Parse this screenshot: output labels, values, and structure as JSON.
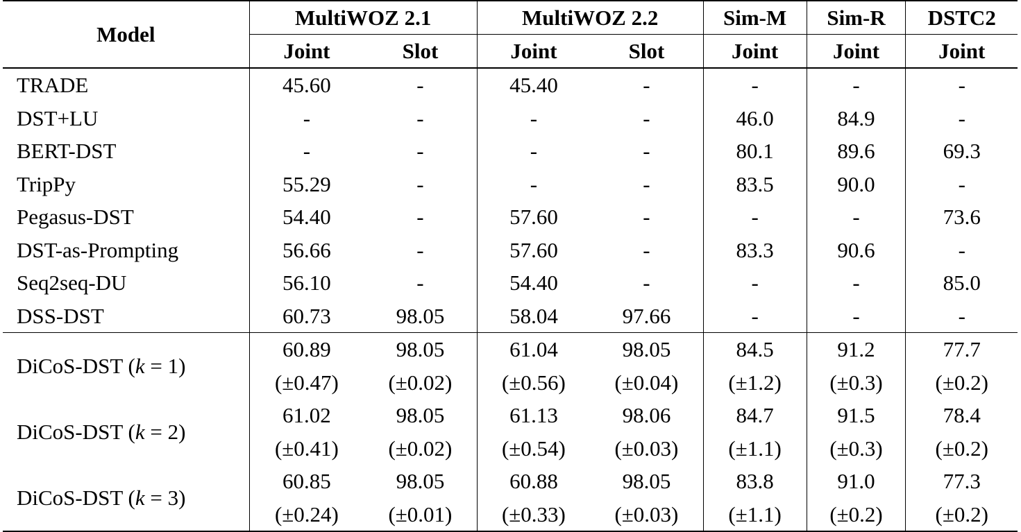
{
  "header": {
    "model": "Model",
    "groups": [
      {
        "name": "MultiWOZ 2.1",
        "cols": [
          "Joint",
          "Slot"
        ]
      },
      {
        "name": "MultiWOZ 2.2",
        "cols": [
          "Joint",
          "Slot"
        ]
      },
      {
        "name": "Sim-M",
        "cols": [
          "Joint"
        ]
      },
      {
        "name": "Sim-R",
        "cols": [
          "Joint"
        ]
      },
      {
        "name": "DSTC2",
        "cols": [
          "Joint"
        ]
      }
    ]
  },
  "baselines": [
    {
      "model": "TRADE",
      "values": [
        "45.60",
        "-",
        "45.40",
        "-",
        "-",
        "-",
        "-"
      ]
    },
    {
      "model": "DST+LU",
      "values": [
        "-",
        "-",
        "-",
        "-",
        "46.0",
        "84.9",
        "-"
      ]
    },
    {
      "model": "BERT-DST",
      "values": [
        "-",
        "-",
        "-",
        "-",
        "80.1",
        "89.6",
        "69.3"
      ]
    },
    {
      "model": "TripPy",
      "values": [
        "55.29",
        "-",
        "-",
        "-",
        "83.5",
        "90.0",
        "-"
      ]
    },
    {
      "model": "Pegasus-DST",
      "values": [
        "54.40",
        "-",
        "57.60",
        "-",
        "-",
        "-",
        "73.6"
      ]
    },
    {
      "model": "DST-as-Prompting",
      "values": [
        "56.66",
        "-",
        "57.60",
        "-",
        "83.3",
        "90.6",
        "-"
      ]
    },
    {
      "model": "Seq2seq-DU",
      "values": [
        "56.10",
        "-",
        "54.40",
        "-",
        "-",
        "-",
        "85.0"
      ],
      "bold": [
        6
      ]
    },
    {
      "model": "DSS-DST",
      "values": [
        "60.73",
        "98.05",
        "58.04",
        "97.66",
        "-",
        "-",
        "-"
      ]
    }
  ],
  "dicos": [
    {
      "model_prefix": "DiCoS-DST (",
      "k_var": "k",
      "k_eq": " = 1)",
      "values": [
        "60.89",
        "98.05",
        "61.04",
        "98.05",
        "84.5",
        "91.2",
        "77.7"
      ],
      "std": [
        "(±0.47)",
        "(±0.02)",
        "(±0.56)",
        "(±0.04)",
        "(±1.2)",
        "(±0.3)",
        "(±0.2)"
      ],
      "bold": []
    },
    {
      "model_prefix": "DiCoS-DST (",
      "k_var": "k",
      "k_eq": " = 2)",
      "values": [
        "61.02",
        "98.05",
        "61.13",
        "98.06",
        "84.7",
        "91.5",
        "78.4"
      ],
      "std": [
        "(±0.41)",
        "(±0.02)",
        "(±0.54)",
        "(±0.03)",
        "(±1.1)",
        "(±0.3)",
        "(±0.2)"
      ],
      "bold": [
        0,
        1,
        2,
        3,
        4,
        5
      ]
    },
    {
      "model_prefix": "DiCoS-DST (",
      "k_var": "k",
      "k_eq": " = 3)",
      "values": [
        "60.85",
        "98.05",
        "60.88",
        "98.05",
        "83.8",
        "91.0",
        "77.3"
      ],
      "std": [
        "(±0.24)",
        "(±0.01)",
        "(±0.33)",
        "(±0.03)",
        "(±1.1)",
        "(±0.2)",
        "(±0.2)"
      ],
      "bold": []
    }
  ]
}
